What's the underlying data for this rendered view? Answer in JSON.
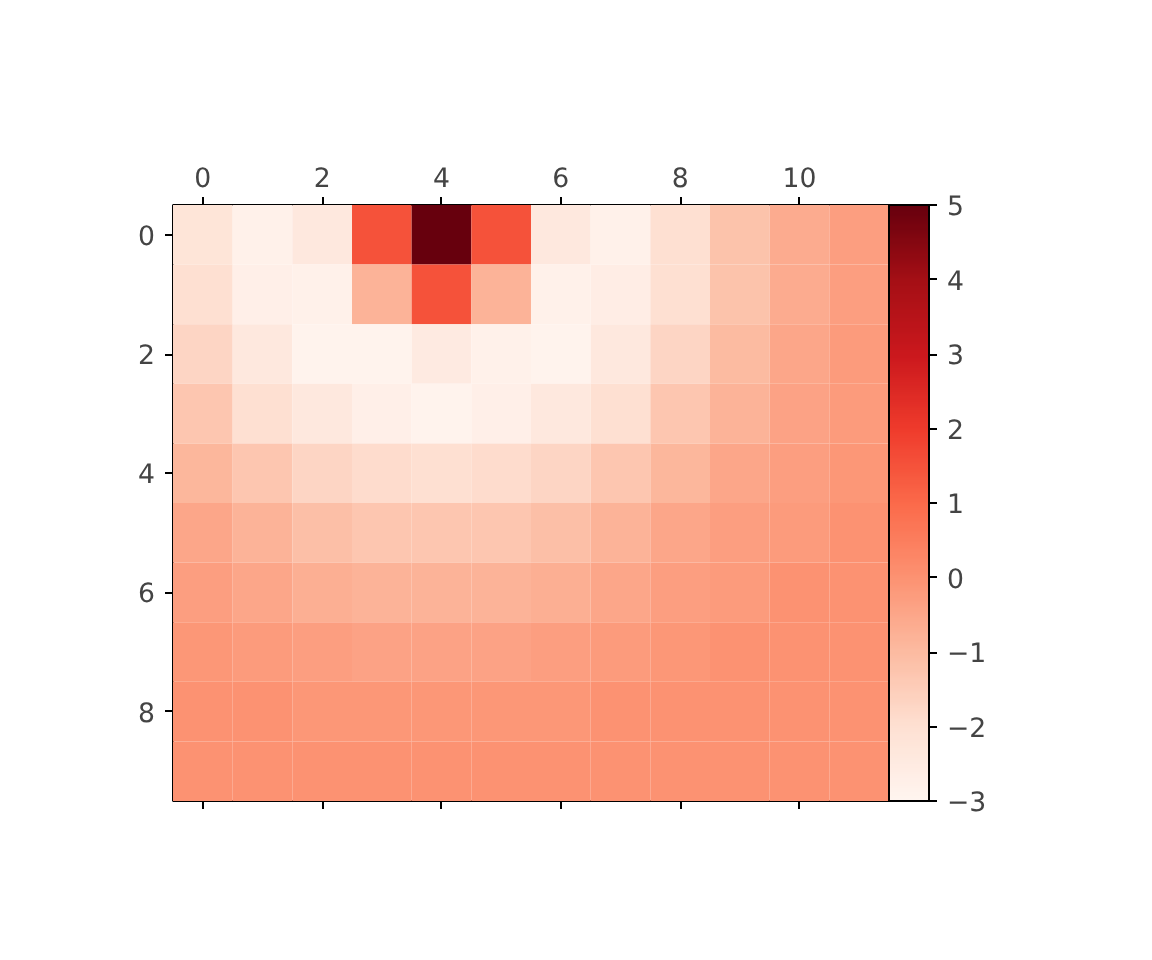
{
  "chart_data": {
    "type": "heatmap",
    "categories": [
      "0",
      null,
      "2",
      null,
      "4",
      null,
      "6",
      null,
      "8",
      null,
      "10",
      null
    ],
    "y_categories": [
      "0",
      null,
      "2",
      null,
      "4",
      null,
      "6",
      null,
      "8",
      null
    ],
    "cells": [
      [
        -2.2,
        -2.8,
        -2.4,
        1.5,
        5,
        1.5,
        -2.4,
        -2.8,
        -2.0,
        -1.2,
        -0.6,
        -0.3
      ],
      [
        -2.0,
        -2.7,
        -2.8,
        -0.8,
        1.5,
        -0.8,
        -2.8,
        -2.6,
        -2.0,
        -1.2,
        -0.6,
        -0.3
      ],
      [
        -1.7,
        -2.4,
        -2.9,
        -2.9,
        -2.5,
        -2.8,
        -2.9,
        -2.4,
        -1.7,
        -1.0,
        -0.5,
        -0.2
      ],
      [
        -1.3,
        -2.0,
        -2.4,
        -2.7,
        -2.9,
        -2.7,
        -2.4,
        -2.0,
        -1.3,
        -0.8,
        -0.4,
        -0.2
      ],
      [
        -0.9,
        -1.3,
        -1.7,
        -1.9,
        -2.0,
        -1.9,
        -1.7,
        -1.3,
        -0.9,
        -0.5,
        -0.3,
        -0.1
      ],
      [
        -0.5,
        -0.8,
        -1.1,
        -1.3,
        -1.3,
        -1.3,
        -1.1,
        -0.8,
        -0.5,
        -0.3,
        -0.2,
        0.0
      ],
      [
        -0.3,
        -0.5,
        -0.7,
        -0.8,
        -0.8,
        -0.8,
        -0.7,
        -0.5,
        -0.3,
        -0.2,
        0.0,
        0.0
      ],
      [
        -0.1,
        -0.2,
        -0.3,
        -0.4,
        -0.4,
        -0.4,
        -0.3,
        -0.2,
        -0.1,
        0.0,
        0.0,
        0.0
      ],
      [
        0.0,
        0.0,
        -0.1,
        -0.1,
        -0.1,
        -0.1,
        -0.1,
        0.0,
        0.0,
        0.0,
        0.0,
        0.0
      ],
      [
        0.0,
        0.0,
        0.0,
        0.0,
        0.0,
        0.0,
        0.0,
        0.0,
        0.0,
        0.0,
        0.0,
        0.0
      ]
    ],
    "clim": [
      -3,
      5
    ],
    "cticks": [
      -3,
      -2,
      -1,
      0,
      1,
      2,
      3,
      4,
      5
    ]
  }
}
